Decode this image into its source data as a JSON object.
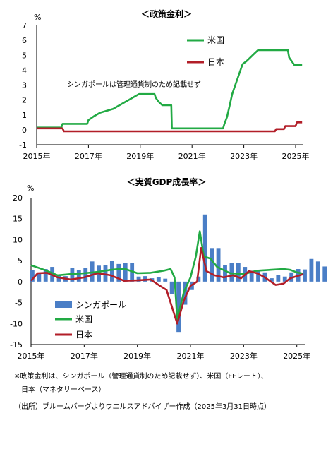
{
  "colors": {
    "sg": "#4a7ec6",
    "us": "#22aa44",
    "jp": "#b21e28"
  },
  "chart_data": [
    {
      "type": "line",
      "title": "＜政策金利＞",
      "unit": "%",
      "ylim": [
        -1,
        7
      ],
      "yticks": [
        "-1",
        "0",
        "1",
        "2",
        "3",
        "4",
        "5",
        "6",
        "7"
      ],
      "xticks": [
        "2015年",
        "2017年",
        "2019年",
        "2021年",
        "2023年",
        "2025年"
      ],
      "xrange": [
        2015.0,
        2025.3
      ],
      "annotation": "シンガポールは管理通貨制のため記載せず",
      "legend": [
        "米国",
        "日本"
      ],
      "series": [
        {
          "name": "米国",
          "color": "#22aa44",
          "points": [
            [
              2015.0,
              0.15
            ],
            [
              2015.95,
              0.15
            ],
            [
              2016.0,
              0.4
            ],
            [
              2016.95,
              0.4
            ],
            [
              2017.0,
              0.65
            ],
            [
              2017.2,
              0.9
            ],
            [
              2017.45,
              1.15
            ],
            [
              2017.95,
              1.4
            ],
            [
              2018.2,
              1.65
            ],
            [
              2018.45,
              1.9
            ],
            [
              2018.7,
              2.15
            ],
            [
              2018.95,
              2.4
            ],
            [
              2019.55,
              2.4
            ],
            [
              2019.6,
              2.15
            ],
            [
              2019.7,
              1.9
            ],
            [
              2019.85,
              1.65
            ],
            [
              2020.2,
              1.65
            ],
            [
              2020.22,
              0.1
            ],
            [
              2022.2,
              0.1
            ],
            [
              2022.25,
              0.4
            ],
            [
              2022.35,
              0.85
            ],
            [
              2022.45,
              1.6
            ],
            [
              2022.55,
              2.4
            ],
            [
              2022.7,
              3.15
            ],
            [
              2022.85,
              3.9
            ],
            [
              2022.95,
              4.4
            ],
            [
              2023.1,
              4.6
            ],
            [
              2023.25,
              4.85
            ],
            [
              2023.4,
              5.1
            ],
            [
              2023.55,
              5.35
            ],
            [
              2024.7,
              5.35
            ],
            [
              2024.75,
              4.85
            ],
            [
              2024.85,
              4.6
            ],
            [
              2024.95,
              4.35
            ],
            [
              2025.25,
              4.35
            ]
          ]
        },
        {
          "name": "日本",
          "color": "#b21e28",
          "points": [
            [
              2015.0,
              0.1
            ],
            [
              2016.0,
              0.1
            ],
            [
              2016.05,
              -0.1
            ],
            [
              2024.2,
              -0.1
            ],
            [
              2024.25,
              0.05
            ],
            [
              2024.55,
              0.05
            ],
            [
              2024.6,
              0.25
            ],
            [
              2025.0,
              0.25
            ],
            [
              2025.05,
              0.5
            ],
            [
              2025.25,
              0.5
            ]
          ]
        }
      ]
    },
    {
      "type": "bar",
      "title": "＜実質GDP成長率＞",
      "unit": "%",
      "ylim": [
        -15,
        20
      ],
      "yticks": [
        "-15",
        "-10",
        "-5",
        "0",
        "5",
        "10",
        "15",
        "20"
      ],
      "xticks": [
        "2015年",
        "2017年",
        "2019年",
        "2021年",
        "2023年",
        "2025年"
      ],
      "xrange": [
        2015.0,
        2025.3
      ],
      "legend": [
        "シンガポール",
        "米国",
        "日本"
      ],
      "series": [
        {
          "name": "シンガポール",
          "color": "#4a7ec6",
          "kind": "bar",
          "x0": 2015.05,
          "step": 0.25,
          "values": [
            2.8,
            2.0,
            3.0,
            3.5,
            1.5,
            1.3,
            3.2,
            2.7,
            3.2,
            4.8,
            3.8,
            4.0,
            5.0,
            4.2,
            4.4,
            4.4,
            1.2,
            1.3,
            0.8,
            1.0,
            0.7,
            -3.0,
            -12.0,
            -5.5,
            -2.0,
            1.2,
            16.0,
            8.0,
            8.0,
            4.0,
            4.5,
            4.4,
            3.5,
            2.6,
            2.8,
            2.2,
            0.8,
            1.5,
            1.2,
            2.2,
            3.0,
            2.9,
            5.4,
            4.8,
            3.6
          ]
        },
        {
          "name": "米国",
          "color": "#22aa44",
          "kind": "line",
          "points": [
            [
              2015.0,
              3.9
            ],
            [
              2015.5,
              2.8
            ],
            [
              2016.0,
              1.5
            ],
            [
              2016.5,
              1.8
            ],
            [
              2017.0,
              2.0
            ],
            [
              2017.5,
              2.3
            ],
            [
              2018.0,
              2.8
            ],
            [
              2018.5,
              3.1
            ],
            [
              2019.0,
              2.0
            ],
            [
              2019.5,
              2.1
            ],
            [
              2020.0,
              2.6
            ],
            [
              2020.25,
              3.0
            ],
            [
              2020.4,
              1.0
            ],
            [
              2020.5,
              -9.0
            ],
            [
              2020.75,
              -2.5
            ],
            [
              2021.0,
              1.0
            ],
            [
              2021.2,
              6.0
            ],
            [
              2021.35,
              12.0
            ],
            [
              2021.5,
              6.0
            ],
            [
              2021.75,
              5.5
            ],
            [
              2022.0,
              3.5
            ],
            [
              2022.5,
              2.0
            ],
            [
              2023.0,
              1.8
            ],
            [
              2023.5,
              2.6
            ],
            [
              2024.0,
              2.8
            ],
            [
              2024.5,
              3.0
            ],
            [
              2024.75,
              2.8
            ],
            [
              2025.0,
              2.2
            ],
            [
              2025.25,
              1.9
            ]
          ]
        },
        {
          "name": "日本",
          "color": "#b21e28",
          "kind": "line",
          "points": [
            [
              2015.0,
              0.2
            ],
            [
              2015.25,
              2.0
            ],
            [
              2015.6,
              2.1
            ],
            [
              2016.0,
              1.0
            ],
            [
              2016.5,
              0.5
            ],
            [
              2017.0,
              1.0
            ],
            [
              2017.5,
              2.0
            ],
            [
              2018.0,
              1.5
            ],
            [
              2018.5,
              0.2
            ],
            [
              2019.0,
              0.3
            ],
            [
              2019.5,
              0.5
            ],
            [
              2019.8,
              -0.8
            ],
            [
              2020.1,
              -2.0
            ],
            [
              2020.5,
              -10.0
            ],
            [
              2020.75,
              -4.5
            ],
            [
              2021.0,
              -1.0
            ],
            [
              2021.25,
              0.0
            ],
            [
              2021.4,
              8.0
            ],
            [
              2021.6,
              2.5
            ],
            [
              2021.9,
              1.5
            ],
            [
              2022.25,
              1.0
            ],
            [
              2022.6,
              1.5
            ],
            [
              2022.9,
              0.8
            ],
            [
              2023.2,
              2.5
            ],
            [
              2023.5,
              2.0
            ],
            [
              2023.8,
              1.0
            ],
            [
              2024.2,
              -0.8
            ],
            [
              2024.5,
              -0.5
            ],
            [
              2024.75,
              0.8
            ],
            [
              2025.25,
              1.8
            ]
          ]
        }
      ]
    }
  ],
  "footnotes": [
    "※政策金利は、シンガポール（管理通貨制のため記載せず）、米国（FFレート）、",
    "日本（マネタリーベース）",
    "（出所）ブルームバーグよりウエルスアドバイザー作成（2025年3月31日時点）"
  ]
}
